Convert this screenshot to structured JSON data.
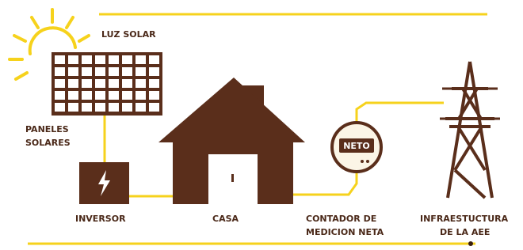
{
  "sun": {
    "label": "LUZ SOLAR"
  },
  "nodes": [
    {
      "label": [
        "PANELES",
        "SOLARES"
      ]
    },
    {
      "label": [
        "INVERSOR"
      ]
    },
    {
      "label": [
        "CASA"
      ]
    },
    {
      "label": [
        "CONTADOR DE",
        "MEDICION NETA"
      ],
      "meter_text": "NETO"
    },
    {
      "label": [
        "INFRAESTUCTURA",
        "DE LA AEE"
      ]
    }
  ]
}
